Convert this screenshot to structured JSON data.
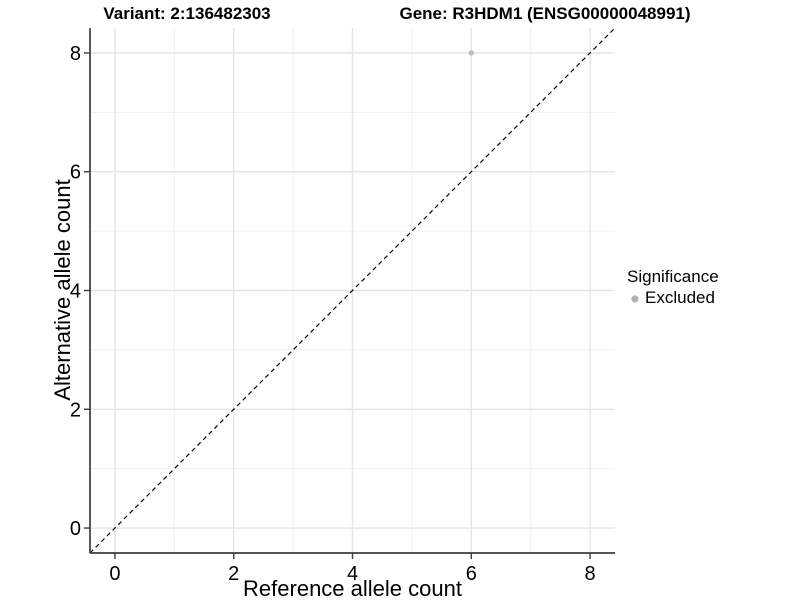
{
  "figure": {
    "background": "#ffffff"
  },
  "chart_data": {
    "type": "scatter",
    "titles": {
      "variant": "Variant: 2:136482303",
      "gene": "Gene: R3HDM1 (ENSG00000048991)"
    },
    "xlabel": "Reference allele count",
    "ylabel": "Alternative allele count",
    "xlim": [
      -0.42,
      8.42
    ],
    "ylim": [
      -0.42,
      8.42
    ],
    "xticks": [
      0,
      2,
      4,
      6,
      8
    ],
    "yticks": [
      0,
      2,
      4,
      6,
      8
    ],
    "minor_xticks": [
      1,
      3,
      5,
      7
    ],
    "minor_yticks": [
      1,
      3,
      5,
      7
    ],
    "grid": "major+minor",
    "identity_line": {
      "style": "dashed",
      "color": "#000000",
      "from": [
        -0.42,
        -0.42
      ],
      "to": [
        8.42,
        8.42
      ]
    },
    "series": [
      {
        "name": "Excluded",
        "color": "#bcbcbc",
        "point_radius": 2.7,
        "points": [
          {
            "x": 6,
            "y": 8
          }
        ]
      }
    ],
    "legend": {
      "title": "Significance",
      "position": "right",
      "items": [
        {
          "label": "Excluded",
          "color": "#b0b0b0",
          "marker": "circle"
        }
      ]
    },
    "colors": {
      "grid_major": "#e4e4e4",
      "grid_minor": "#f1f1f1",
      "axis": "#3c3c3c",
      "text": "#000000"
    }
  }
}
